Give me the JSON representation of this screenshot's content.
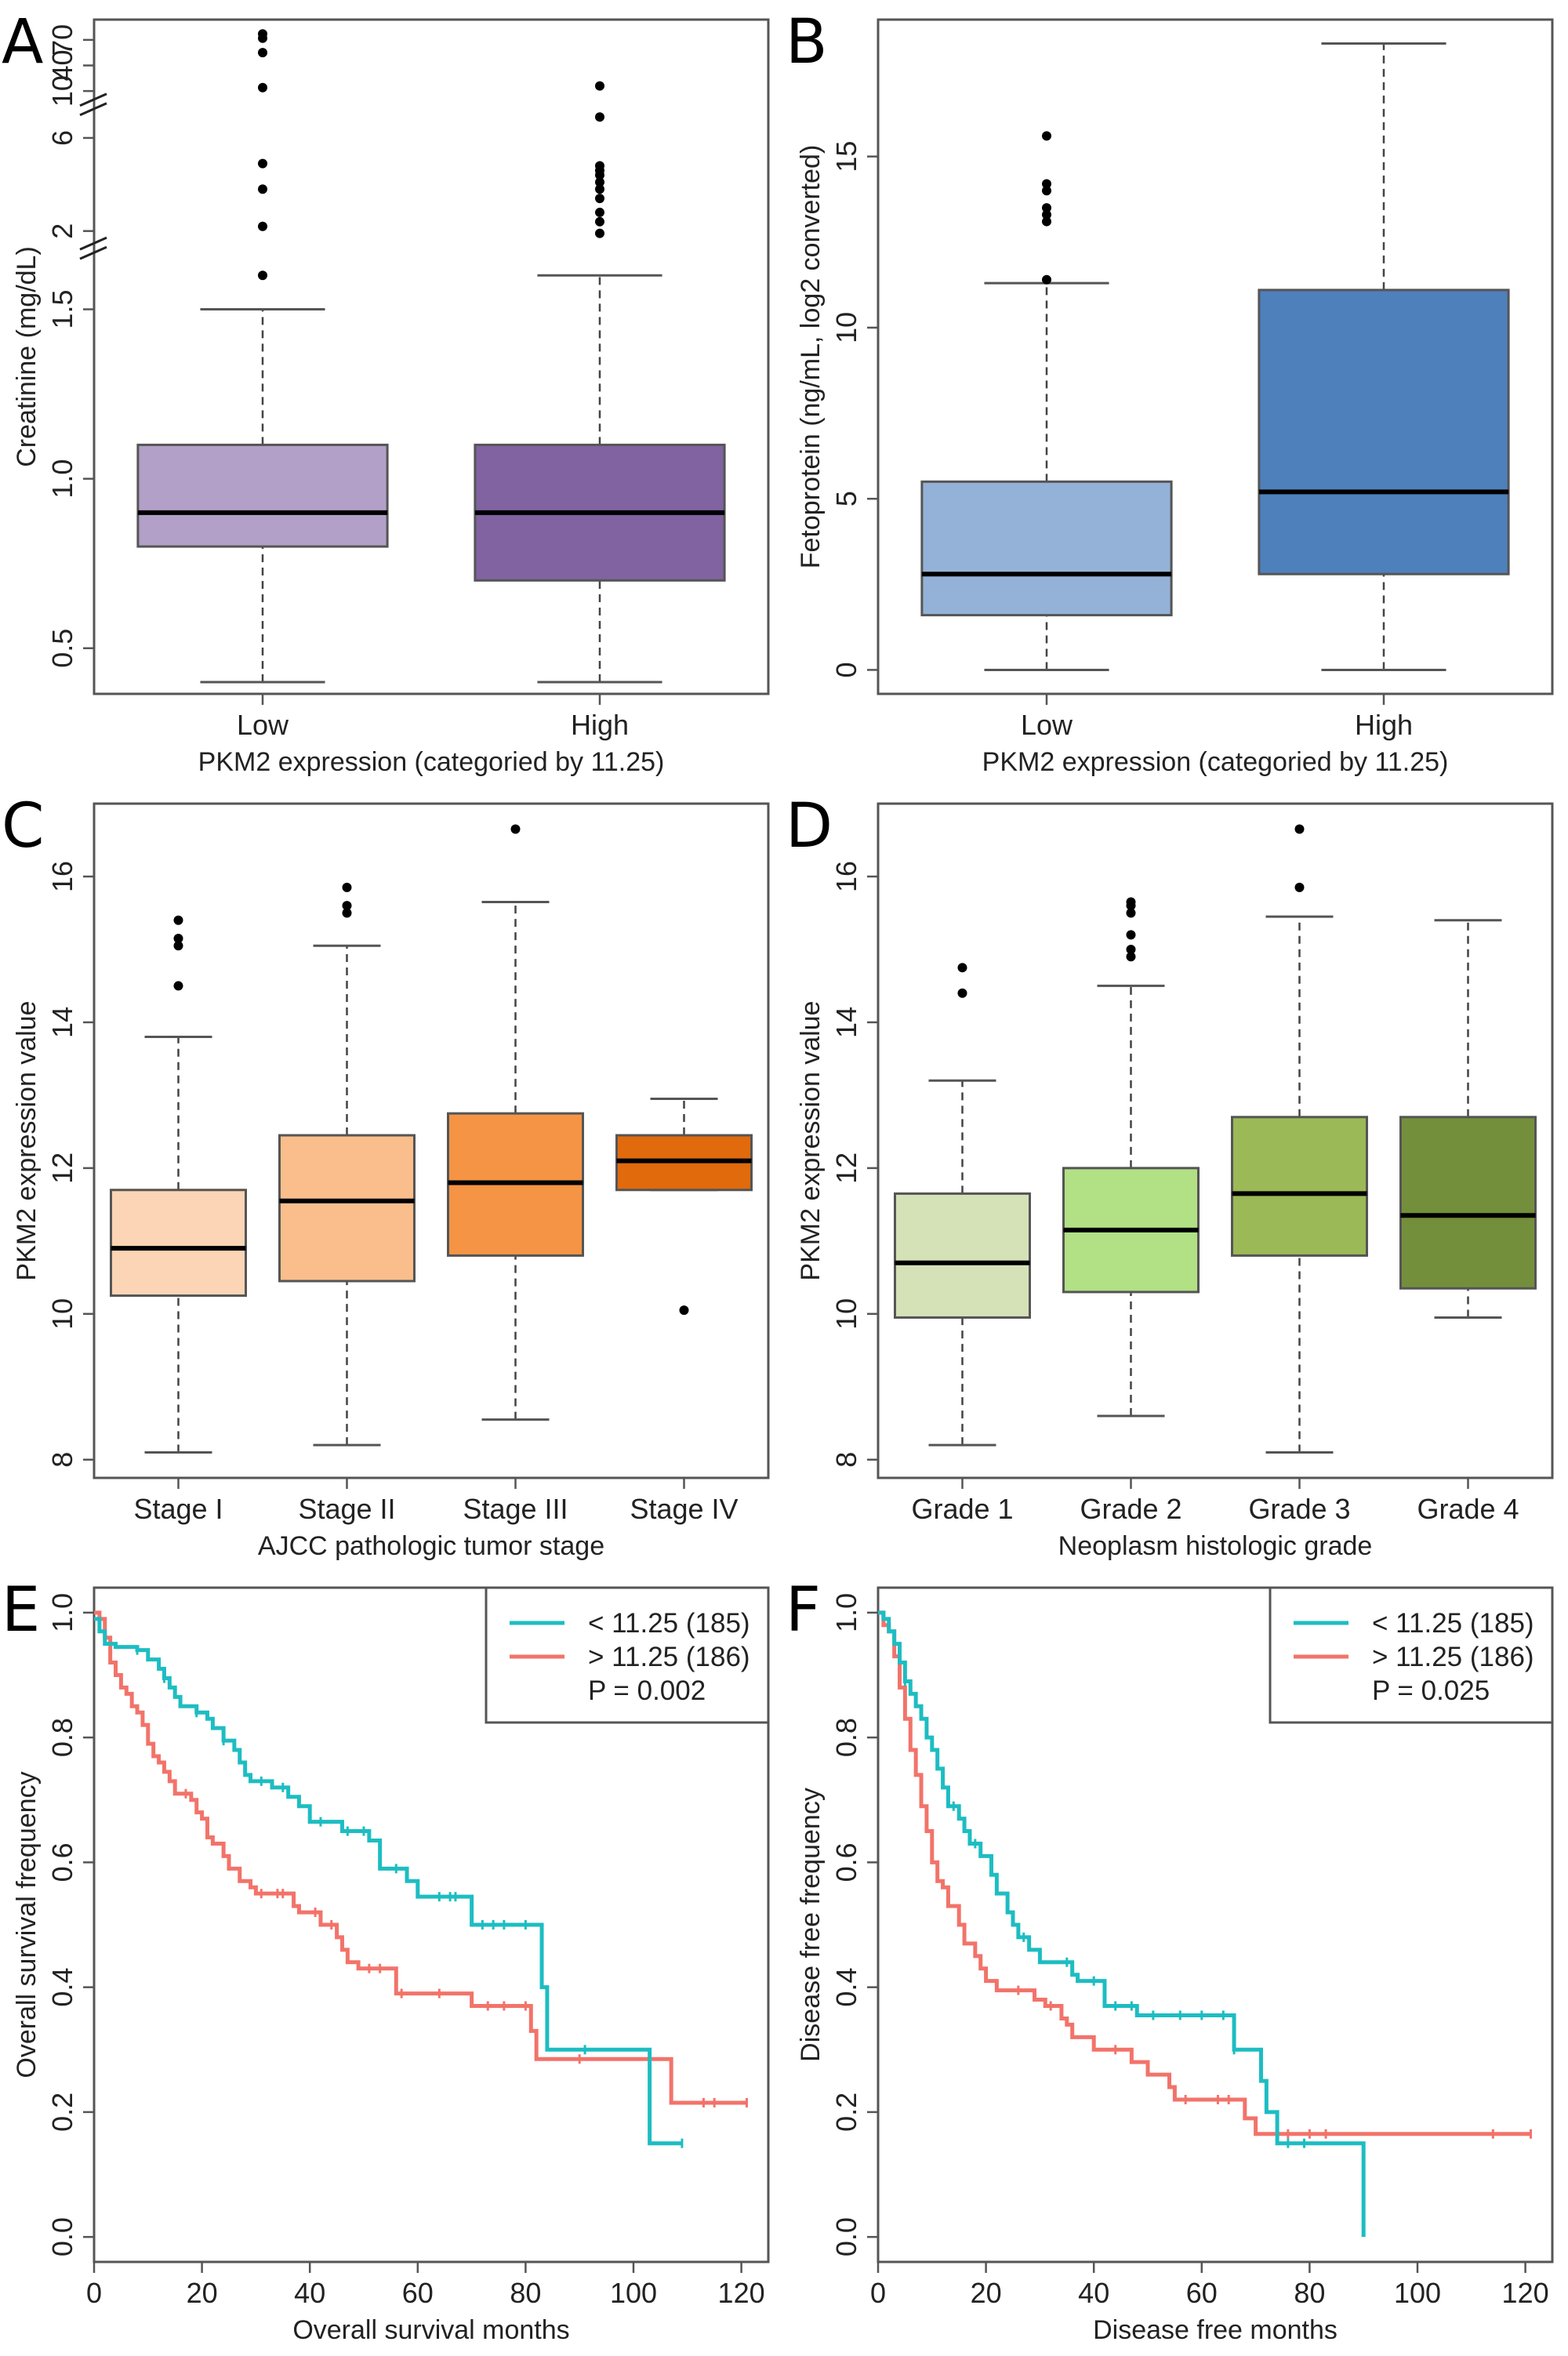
{
  "figure": {
    "panels": [
      "A",
      "B",
      "C",
      "D",
      "E",
      "F"
    ]
  },
  "chart_data": [
    {
      "id": "A",
      "type": "box",
      "panel_letter": "A",
      "title": "",
      "xlabel": "PKM2 expression (categoried by 11.25)",
      "ylabel": "Creatinine (mg/dL)",
      "categories": [
        "Low",
        "High"
      ],
      "colors": [
        "#b2a0c9",
        "#8063a0"
      ],
      "axis_breaks": [
        [
          1.65,
          1.8
        ],
        [
          7.0,
          9.0
        ]
      ],
      "y_segments": [
        {
          "range": [
            0.4,
            1.65
          ],
          "ticks": [
            0.5,
            1.0,
            1.5
          ],
          "tick_labels": [
            "0.5",
            "1.0",
            "1.5"
          ]
        },
        {
          "range": [
            1.8,
            7.0
          ],
          "ticks": [
            2,
            6
          ],
          "tick_labels": [
            "2",
            "6"
          ]
        },
        {
          "range": [
            9.0,
            80
          ],
          "ticks": [
            10,
            40,
            70
          ],
          "tick_labels": [
            "10",
            "40",
            "70"
          ]
        }
      ],
      "boxes": [
        {
          "category": "Low",
          "whisker_low": 0.4,
          "q1": 0.8,
          "median": 0.9,
          "q3": 1.1,
          "whisker_high": 1.5,
          "outliers": [
            1.6,
            2.2,
            3.8,
            4.9,
            14,
            55,
            72,
            77
          ]
        },
        {
          "category": "High",
          "whisker_low": 0.4,
          "q1": 0.7,
          "median": 0.9,
          "q3": 1.1,
          "whisker_high": 1.6,
          "outliers": [
            1.9,
            2.4,
            2.8,
            3.4,
            3.8,
            4.1,
            4.4,
            4.6,
            4.8,
            6.9,
            16
          ]
        }
      ]
    },
    {
      "id": "B",
      "type": "box",
      "panel_letter": "B",
      "title": "",
      "xlabel": "PKM2 expression (categoried by 11.25)",
      "ylabel": "Fetoprotein (ng/mL, log2 converted)",
      "categories": [
        "Low",
        "High"
      ],
      "colors": [
        "#94b2d8",
        "#4e80bb"
      ],
      "ylim": [
        -0.7,
        19.0
      ],
      "yticks": [
        0,
        5,
        10,
        15
      ],
      "ytick_labels": [
        "0",
        "5",
        "10",
        "15"
      ],
      "boxes": [
        {
          "category": "Low",
          "whisker_low": 0.0,
          "q1": 1.6,
          "median": 2.8,
          "q3": 5.5,
          "whisker_high": 11.3,
          "outliers": [
            11.4,
            13.1,
            13.3,
            13.5,
            14.0,
            14.2,
            15.6
          ]
        },
        {
          "category": "High",
          "whisker_low": 0.0,
          "q1": 2.8,
          "median": 5.2,
          "q3": 11.1,
          "whisker_high": 18.3,
          "outliers": []
        }
      ]
    },
    {
      "id": "C",
      "type": "box",
      "panel_letter": "C",
      "title": "",
      "xlabel": "AJCC pathologic tumor stage",
      "ylabel": "PKM2 expression value",
      "categories": [
        "Stage I",
        "Stage II",
        "Stage III",
        "Stage IV"
      ],
      "colors": [
        "#fbd5b5",
        "#f9be8b",
        "#f59444",
        "#e06a0c"
      ],
      "ylim": [
        7.75,
        17.0
      ],
      "yticks": [
        8,
        10,
        12,
        14,
        16
      ],
      "ytick_labels": [
        "8",
        "10",
        "12",
        "14",
        "16"
      ],
      "boxes": [
        {
          "category": "Stage I",
          "whisker_low": 8.1,
          "q1": 10.25,
          "median": 10.9,
          "q3": 11.7,
          "whisker_high": 13.8,
          "outliers": [
            14.5,
            15.05,
            15.15,
            15.4
          ]
        },
        {
          "category": "Stage II",
          "whisker_low": 8.2,
          "q1": 10.45,
          "median": 11.55,
          "q3": 12.45,
          "whisker_high": 15.05,
          "outliers": [
            15.5,
            15.6,
            15.85
          ]
        },
        {
          "category": "Stage III",
          "whisker_low": 8.55,
          "q1": 10.8,
          "median": 11.8,
          "q3": 12.75,
          "whisker_high": 15.65,
          "outliers": [
            16.65
          ]
        },
        {
          "category": "Stage IV",
          "whisker_low": 11.7,
          "q1": 11.7,
          "median": 12.1,
          "q3": 12.45,
          "whisker_high": 12.95,
          "outliers": [
            10.05
          ]
        }
      ]
    },
    {
      "id": "D",
      "type": "box",
      "panel_letter": "D",
      "title": "",
      "xlabel": "Neoplasm histologic grade",
      "ylabel": "PKM2 expression value",
      "categories": [
        "Grade 1",
        "Grade 2",
        "Grade 3",
        "Grade 4"
      ],
      "colors": [
        "#d5e2b8",
        "#b1e085",
        "#9bb956",
        "#748f3b"
      ],
      "ylim": [
        7.75,
        17.0
      ],
      "yticks": [
        8,
        10,
        12,
        14,
        16
      ],
      "ytick_labels": [
        "8",
        "10",
        "12",
        "14",
        "16"
      ],
      "boxes": [
        {
          "category": "Grade 1",
          "whisker_low": 8.2,
          "q1": 9.95,
          "median": 10.7,
          "q3": 11.65,
          "whisker_high": 13.2,
          "outliers": [
            14.4,
            14.75
          ]
        },
        {
          "category": "Grade 2",
          "whisker_low": 8.6,
          "q1": 10.3,
          "median": 11.15,
          "q3": 12.0,
          "whisker_high": 14.5,
          "outliers": [
            14.9,
            15.0,
            15.2,
            15.5,
            15.6,
            15.65
          ]
        },
        {
          "category": "Grade 3",
          "whisker_low": 8.1,
          "q1": 10.8,
          "median": 11.65,
          "q3": 12.7,
          "whisker_high": 15.45,
          "outliers": [
            15.85,
            16.65
          ]
        },
        {
          "category": "Grade 4",
          "whisker_low": 9.95,
          "q1": 10.35,
          "median": 11.35,
          "q3": 12.7,
          "whisker_high": 15.4,
          "outliers": []
        }
      ]
    },
    {
      "id": "E",
      "type": "line",
      "subtype": "kaplan-meier",
      "panel_letter": "E",
      "title": "",
      "xlabel": "Overall survival months",
      "ylabel": "Overall survival frequency",
      "xlim": [
        0,
        125
      ],
      "ylim": [
        -0.04,
        1.04
      ],
      "xticks": [
        0,
        20,
        40,
        60,
        80,
        100,
        120
      ],
      "yticks": [
        0.0,
        0.2,
        0.4,
        0.6,
        0.8,
        1.0
      ],
      "ytick_labels": [
        "0.0",
        "0.2",
        "0.4",
        "0.6",
        "0.8",
        "1.0"
      ],
      "legend": {
        "position": "top-right",
        "p_value_text": "P = 0.002"
      },
      "series": [
        {
          "name": "< 11.25 (185)",
          "color": "#1dbdc2",
          "steps": [
            [
              0,
              0.99
            ],
            [
              1,
              0.97
            ],
            [
              2,
              0.95
            ],
            [
              4,
              0.945
            ],
            [
              8,
              0.94
            ],
            [
              10,
              0.925
            ],
            [
              12,
              0.91
            ],
            [
              13,
              0.895
            ],
            [
              14,
              0.88
            ],
            [
              15,
              0.865
            ],
            [
              16,
              0.85
            ],
            [
              19,
              0.84
            ],
            [
              21,
              0.83
            ],
            [
              22,
              0.815
            ],
            [
              24,
              0.795
            ],
            [
              26,
              0.78
            ],
            [
              27,
              0.76
            ],
            [
              28,
              0.74
            ],
            [
              29,
              0.73
            ],
            [
              33,
              0.72
            ],
            [
              36,
              0.705
            ],
            [
              38,
              0.69
            ],
            [
              40,
              0.665
            ],
            [
              46,
              0.65
            ],
            [
              51,
              0.635
            ],
            [
              53,
              0.59
            ],
            [
              58,
              0.57
            ],
            [
              60,
              0.545
            ],
            [
              70,
              0.5
            ],
            [
              83,
              0.4
            ],
            [
              84,
              0.3
            ],
            [
              103,
              0.15
            ],
            [
              109,
              0.15
            ]
          ],
          "censored": [
            8,
            13,
            19,
            24,
            31,
            35,
            42,
            47,
            50,
            56,
            64,
            66,
            67,
            72,
            74,
            76,
            80,
            91,
            109
          ]
        },
        {
          "name": "> 11.25 (186)",
          "color": "#f2736a",
          "steps": [
            [
              0,
              1.0
            ],
            [
              1,
              0.99
            ],
            [
              2,
              0.96
            ],
            [
              3,
              0.92
            ],
            [
              4,
              0.9
            ],
            [
              5,
              0.88
            ],
            [
              6,
              0.87
            ],
            [
              7,
              0.85
            ],
            [
              8,
              0.84
            ],
            [
              9,
              0.82
            ],
            [
              10,
              0.79
            ],
            [
              11,
              0.77
            ],
            [
              12,
              0.76
            ],
            [
              13,
              0.745
            ],
            [
              14,
              0.73
            ],
            [
              15,
              0.71
            ],
            [
              18,
              0.7
            ],
            [
              19,
              0.68
            ],
            [
              20,
              0.67
            ],
            [
              21,
              0.64
            ],
            [
              22,
              0.63
            ],
            [
              24,
              0.61
            ],
            [
              25,
              0.59
            ],
            [
              27,
              0.57
            ],
            [
              29,
              0.56
            ],
            [
              30,
              0.55
            ],
            [
              37,
              0.53
            ],
            [
              38,
              0.52
            ],
            [
              42,
              0.5
            ],
            [
              45,
              0.48
            ],
            [
              46,
              0.46
            ],
            [
              47,
              0.44
            ],
            [
              49,
              0.43
            ],
            [
              56,
              0.39
            ],
            [
              70,
              0.37
            ],
            [
              81,
              0.33
            ],
            [
              82,
              0.285
            ],
            [
              107,
              0.215
            ],
            [
              121,
              0.215
            ]
          ],
          "censored": [
            17,
            31,
            34,
            35,
            41,
            44,
            51,
            53,
            57,
            64,
            73,
            76,
            80,
            90,
            113,
            115,
            121
          ]
        }
      ]
    },
    {
      "id": "F",
      "type": "line",
      "subtype": "kaplan-meier",
      "panel_letter": "F",
      "title": "",
      "xlabel": "Disease free months",
      "ylabel": "Disease free frequency",
      "xlim": [
        0,
        125
      ],
      "ylim": [
        -0.04,
        1.04
      ],
      "xticks": [
        0,
        20,
        40,
        60,
        80,
        100,
        120
      ],
      "yticks": [
        0.0,
        0.2,
        0.4,
        0.6,
        0.8,
        1.0
      ],
      "ytick_labels": [
        "0.0",
        "0.2",
        "0.4",
        "0.6",
        "0.8",
        "1.0"
      ],
      "legend": {
        "position": "top-right",
        "p_value_text": "P = 0.025"
      },
      "series": [
        {
          "name": "< 11.25 (185)",
          "color": "#1dbdc2",
          "steps": [
            [
              0,
              1.0
            ],
            [
              1,
              0.99
            ],
            [
              2,
              0.97
            ],
            [
              3,
              0.95
            ],
            [
              4,
              0.92
            ],
            [
              5,
              0.89
            ],
            [
              6,
              0.87
            ],
            [
              7,
              0.85
            ],
            [
              8,
              0.83
            ],
            [
              9,
              0.8
            ],
            [
              10,
              0.78
            ],
            [
              11,
              0.75
            ],
            [
              12,
              0.72
            ],
            [
              13,
              0.69
            ],
            [
              15,
              0.67
            ],
            [
              16,
              0.65
            ],
            [
              17,
              0.63
            ],
            [
              19,
              0.61
            ],
            [
              21,
              0.58
            ],
            [
              22,
              0.55
            ],
            [
              24,
              0.52
            ],
            [
              25,
              0.5
            ],
            [
              26,
              0.48
            ],
            [
              28,
              0.46
            ],
            [
              30,
              0.44
            ],
            [
              36,
              0.42
            ],
            [
              37,
              0.41
            ],
            [
              42,
              0.37
            ],
            [
              48,
              0.355
            ],
            [
              66,
              0.3
            ],
            [
              71,
              0.25
            ],
            [
              72,
              0.2
            ],
            [
              74,
              0.15
            ],
            [
              90,
              0.0
            ]
          ],
          "censored": [
            5,
            14,
            18,
            27,
            35,
            40,
            44,
            47,
            51,
            56,
            60,
            64,
            66,
            76,
            79
          ]
        },
        {
          "name": "> 11.25 (186)",
          "color": "#f2736a",
          "steps": [
            [
              0,
              1.0
            ],
            [
              1,
              0.98
            ],
            [
              2,
              0.97
            ],
            [
              3,
              0.93
            ],
            [
              4,
              0.88
            ],
            [
              5,
              0.83
            ],
            [
              6,
              0.78
            ],
            [
              7,
              0.74
            ],
            [
              8,
              0.69
            ],
            [
              9,
              0.65
            ],
            [
              10,
              0.6
            ],
            [
              11,
              0.57
            ],
            [
              12,
              0.56
            ],
            [
              13,
              0.53
            ],
            [
              15,
              0.5
            ],
            [
              16,
              0.47
            ],
            [
              18,
              0.45
            ],
            [
              19,
              0.43
            ],
            [
              20,
              0.41
            ],
            [
              22,
              0.395
            ],
            [
              29,
              0.38
            ],
            [
              31,
              0.37
            ],
            [
              34,
              0.35
            ],
            [
              35,
              0.34
            ],
            [
              36,
              0.32
            ],
            [
              40,
              0.3
            ],
            [
              47,
              0.28
            ],
            [
              50,
              0.26
            ],
            [
              54,
              0.24
            ],
            [
              55,
              0.22
            ],
            [
              68,
              0.19
            ],
            [
              70,
              0.165
            ],
            [
              121,
              0.165
            ]
          ],
          "censored": [
            26,
            32,
            44,
            57,
            63,
            65,
            76,
            80,
            83,
            114,
            121
          ]
        }
      ]
    }
  ]
}
